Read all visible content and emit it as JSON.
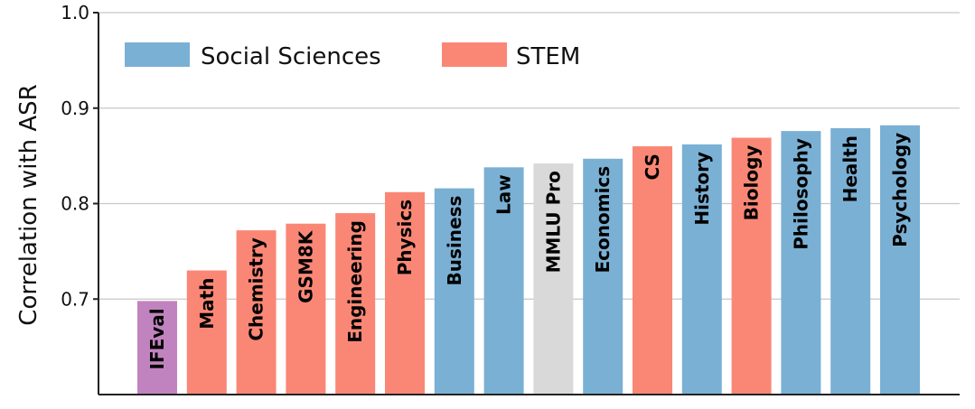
{
  "chart_data": {
    "type": "bar",
    "title": "",
    "xlabel": "",
    "ylabel": "Correlation with ASR",
    "ylim": [
      0.6,
      1.0
    ],
    "yticks": [
      "0.7",
      "0.8",
      "0.9",
      "1.0"
    ],
    "grid": true,
    "legend_position": "top-left",
    "legend": [
      {
        "name": "Social Sciences",
        "color": "#7ab0d4"
      },
      {
        "name": "STEM",
        "color": "#fa8775"
      }
    ],
    "categories": [
      "IFEval",
      "Math",
      "Chemistry",
      "GSM8K",
      "Engineering",
      "Physics",
      "Business",
      "Law",
      "MMLU Pro",
      "Economics",
      "CS",
      "History",
      "Biology",
      "Philosophy",
      "Health",
      "Psychology"
    ],
    "values": [
      0.698,
      0.73,
      0.772,
      0.779,
      0.79,
      0.812,
      0.816,
      0.838,
      0.842,
      0.847,
      0.86,
      0.862,
      0.869,
      0.876,
      0.879,
      0.882
    ],
    "groups": [
      "Other",
      "STEM",
      "STEM",
      "STEM",
      "STEM",
      "STEM",
      "Social Sciences",
      "Social Sciences",
      "Other",
      "Social Sciences",
      "STEM",
      "Social Sciences",
      "STEM",
      "Social Sciences",
      "Social Sciences",
      "Social Sciences"
    ],
    "colors": [
      "#c183bf",
      "#fa8775",
      "#fa8775",
      "#fa8775",
      "#fa8775",
      "#fa8775",
      "#7ab0d4",
      "#7ab0d4",
      "#d9d9d9",
      "#7ab0d4",
      "#fa8775",
      "#7ab0d4",
      "#fa8775",
      "#7ab0d4",
      "#7ab0d4",
      "#7ab0d4"
    ]
  }
}
